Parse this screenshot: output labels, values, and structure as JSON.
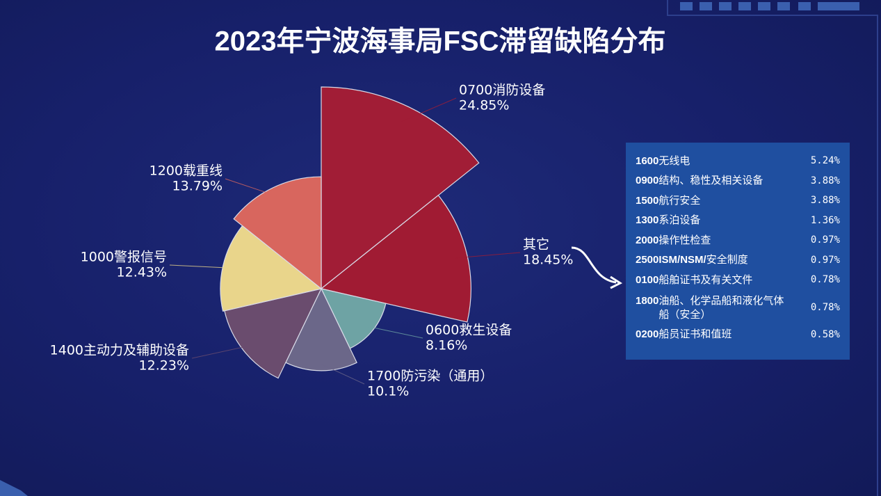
{
  "chart_data": {
    "type": "pie",
    "rose": "area",
    "title": "2023年宁波海事局FSC滞留缺陷分布",
    "categories": [
      "0700消防设备",
      "其它",
      "0600救生设备",
      "1700防污染（通用）",
      "1400主动力及辅助设备",
      "1000警报信号",
      "1200载重线"
    ],
    "values": [
      24.85,
      18.45,
      8.16,
      10.1,
      12.23,
      12.43,
      13.79
    ],
    "value_labels": [
      "24.85%",
      "18.45%",
      "8.16%",
      "10.1%",
      "12.23%",
      "12.43%",
      "13.79%"
    ],
    "colors": [
      "#a11d36",
      "#a01b33",
      "#6ea3a4",
      "#6b6789",
      "#6a4c6e",
      "#e9d58b",
      "#d8665e"
    ]
  },
  "table": {
    "rows": [
      [
        "1600",
        "无线电",
        "5.24%"
      ],
      [
        "0900",
        "结构、稳性及相关设备",
        "3.88%"
      ],
      [
        "1500",
        "航行安全",
        "3.88%"
      ],
      [
        "1300",
        "系泊设备",
        "1.36%"
      ],
      [
        "2000",
        "操作性检查",
        "0.97%"
      ],
      [
        "2500ISM/NSM/",
        "安全制度",
        "0.97%"
      ],
      [
        "0100",
        "船舶证书及有关文件",
        "0.78%"
      ],
      [
        "1800",
        "油船、化学品船和液化气体船（安全）",
        "0.78%"
      ],
      [
        "0200",
        "船员证书和值班",
        "0.58%"
      ]
    ]
  }
}
